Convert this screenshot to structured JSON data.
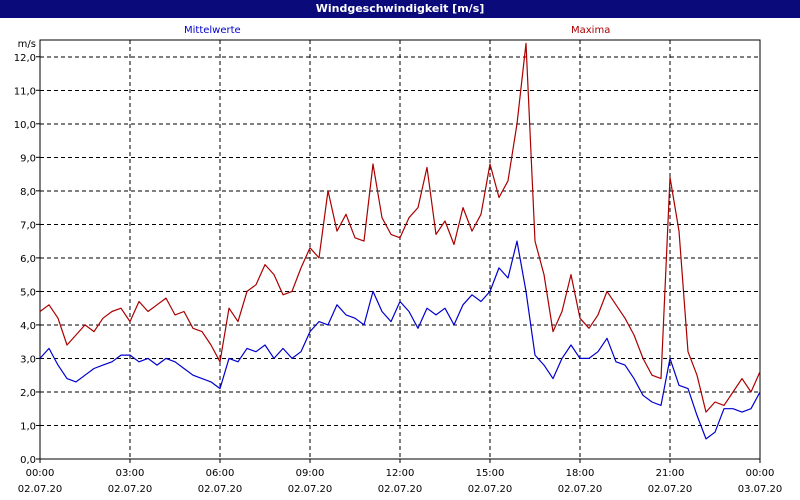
{
  "window": {
    "title": "Windgeschwindigkeit [m/s]"
  },
  "colors": {
    "titlebar": "#0a0a7a",
    "mittel": "#0000cc",
    "maxima": "#aa0000",
    "grid": "#000000"
  },
  "chart_data": {
    "type": "line",
    "title": "Windgeschwindigkeit [m/s]",
    "ylabel": "m/s",
    "ylim": [
      0,
      12.5
    ],
    "grid": true,
    "legend": [
      "Mittelwerte",
      "Maxima"
    ],
    "yticks": [
      "0,0",
      "1,0",
      "2,0",
      "3,0",
      "4,0",
      "5,0",
      "6,0",
      "7,0",
      "8,0",
      "9,0",
      "10,0",
      "11,0",
      "12,0"
    ],
    "xticks": [
      {
        "time": "00:00",
        "date": "02.07.20"
      },
      {
        "time": "03:00",
        "date": "02.07.20"
      },
      {
        "time": "06:00",
        "date": "02.07.20"
      },
      {
        "time": "09:00",
        "date": "02.07.20"
      },
      {
        "time": "12:00",
        "date": "02.07.20"
      },
      {
        "time": "15:00",
        "date": "02.07.20"
      },
      {
        "time": "18:00",
        "date": "02.07.20"
      },
      {
        "time": "21:00",
        "date": "02.07.20"
      },
      {
        "time": "00:00",
        "date": "03.07.20"
      }
    ],
    "xlim_hours": [
      0,
      24
    ],
    "series": [
      {
        "name": "Mittelwerte",
        "color": "#0000cc",
        "hours": [
          0,
          0.3,
          0.6,
          0.9,
          1.2,
          1.5,
          1.8,
          2.1,
          2.4,
          2.7,
          3,
          3.3,
          3.6,
          3.9,
          4.2,
          4.5,
          4.8,
          5.1,
          5.4,
          5.7,
          6,
          6.3,
          6.6,
          6.9,
          7.2,
          7.5,
          7.8,
          8.1,
          8.4,
          8.7,
          9,
          9.3,
          9.6,
          9.9,
          10.2,
          10.5,
          10.8,
          11.1,
          11.4,
          11.7,
          12,
          12.3,
          12.6,
          12.9,
          13.2,
          13.5,
          13.8,
          14.1,
          14.4,
          14.7,
          15,
          15.3,
          15.6,
          15.9,
          16.2,
          16.5,
          16.8,
          17.1,
          17.4,
          17.7,
          18,
          18.3,
          18.6,
          18.9,
          19.2,
          19.5,
          19.8,
          20.1,
          20.4,
          20.7,
          21,
          21.3,
          21.6,
          21.9,
          22.2,
          22.5,
          22.8,
          23.1,
          23.4,
          23.7,
          24
        ],
        "values": [
          3.0,
          3.3,
          2.8,
          2.4,
          2.3,
          2.5,
          2.7,
          2.8,
          2.9,
          3.1,
          3.1,
          2.9,
          3.0,
          2.8,
          3.0,
          2.9,
          2.7,
          2.5,
          2.4,
          2.3,
          2.1,
          3.0,
          2.9,
          3.3,
          3.2,
          3.4,
          3.0,
          3.3,
          3.0,
          3.2,
          3.8,
          4.1,
          4.0,
          4.6,
          4.3,
          4.2,
          4.0,
          5.0,
          4.4,
          4.1,
          4.7,
          4.4,
          3.9,
          4.5,
          4.3,
          4.5,
          4.0,
          4.6,
          4.9,
          4.7,
          5.0,
          5.7,
          5.4,
          6.5,
          5.0,
          3.1,
          2.8,
          2.4,
          3.0,
          3.4,
          3.0,
          3.0,
          3.2,
          3.6,
          2.9,
          2.8,
          2.4,
          1.9,
          1.7,
          1.6,
          3.0,
          2.2,
          2.1,
          1.3,
          0.6,
          0.8,
          1.5,
          1.5,
          1.4,
          1.5,
          2.0
        ]
      },
      {
        "name": "Maxima",
        "color": "#aa0000",
        "hours": [
          0,
          0.3,
          0.6,
          0.9,
          1.2,
          1.5,
          1.8,
          2.1,
          2.4,
          2.7,
          3,
          3.3,
          3.6,
          3.9,
          4.2,
          4.5,
          4.8,
          5.1,
          5.4,
          5.7,
          6,
          6.3,
          6.6,
          6.9,
          7.2,
          7.5,
          7.8,
          8.1,
          8.4,
          8.7,
          9,
          9.3,
          9.6,
          9.9,
          10.2,
          10.5,
          10.8,
          11.1,
          11.4,
          11.7,
          12,
          12.3,
          12.6,
          12.9,
          13.2,
          13.5,
          13.8,
          14.1,
          14.4,
          14.7,
          15,
          15.3,
          15.6,
          15.9,
          16.2,
          16.5,
          16.8,
          17.1,
          17.4,
          17.7,
          18,
          18.3,
          18.6,
          18.9,
          19.2,
          19.5,
          19.8,
          20.1,
          20.4,
          20.7,
          21,
          21.3,
          21.6,
          21.9,
          22.2,
          22.5,
          22.8,
          23.1,
          23.4,
          23.7,
          24
        ],
        "values": [
          4.4,
          4.6,
          4.2,
          3.4,
          3.7,
          4.0,
          3.8,
          4.2,
          4.4,
          4.5,
          4.1,
          4.7,
          4.4,
          4.6,
          4.8,
          4.3,
          4.4,
          3.9,
          3.8,
          3.4,
          2.9,
          4.5,
          4.1,
          5.0,
          5.2,
          5.8,
          5.5,
          4.9,
          5.0,
          5.7,
          6.3,
          6.0,
          8.0,
          6.8,
          7.3,
          6.6,
          6.5,
          8.8,
          7.2,
          6.7,
          6.6,
          7.2,
          7.5,
          8.7,
          6.7,
          7.1,
          6.4,
          7.5,
          6.8,
          7.3,
          8.8,
          7.8,
          8.3,
          10.0,
          12.4,
          6.5,
          5.5,
          3.8,
          4.4,
          5.5,
          4.2,
          3.9,
          4.3,
          5.0,
          4.6,
          4.2,
          3.7,
          3.0,
          2.5,
          2.4,
          8.4,
          6.8,
          3.2,
          2.5,
          1.4,
          1.7,
          1.6,
          2.0,
          2.4,
          2.0,
          2.6
        ]
      }
    ]
  }
}
